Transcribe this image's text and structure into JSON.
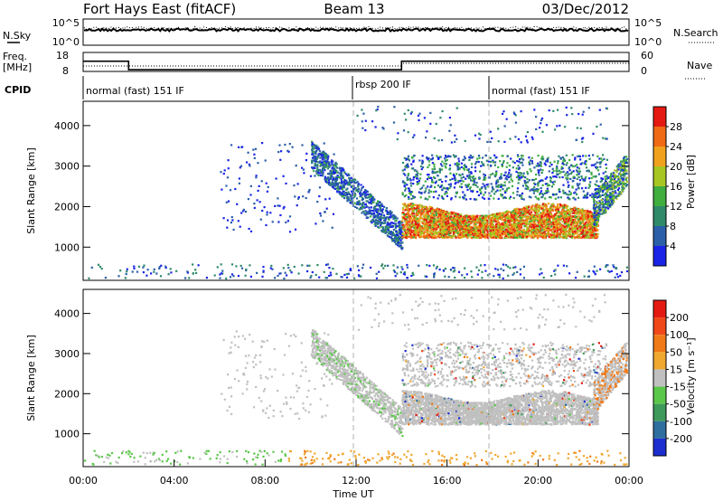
{
  "header": {
    "station": "Fort Hays East (fitACF)",
    "beam": "Beam 13",
    "date": "03/Dec/2012"
  },
  "summary_panels": {
    "nsky_label": "N.Sky",
    "nsky_ticks": [
      "10^5",
      "10^0"
    ],
    "nsearch_label": "N.Search",
    "nsearch_ticks": [
      "10^5",
      "10^0"
    ],
    "freq_label": "Freq.",
    "freq_unit": "[MHz]",
    "freq_ticks": [
      "18",
      "8"
    ],
    "nave_label": "Nave",
    "nave_ticks": [
      "60",
      "0"
    ],
    "cpid_label": "CPID",
    "cpid_segments": [
      {
        "label": "normal (fast) 151 IF",
        "start_hour": 0,
        "end_hour": 12
      },
      {
        "label": "rbsp 200 IF",
        "start_hour": 12,
        "end_hour": 18
      },
      {
        "label": "normal (fast) 151 IF",
        "start_hour": 18,
        "end_hour": 24
      }
    ],
    "freq_steps": [
      {
        "start_hour": 0,
        "end_hour": 2,
        "value": 15.3
      },
      {
        "start_hour": 2,
        "end_hour": 14,
        "value": 10.8
      },
      {
        "start_hour": 14,
        "end_hour": 24,
        "value": 15.3
      }
    ]
  },
  "chart_data": [
    {
      "type": "heatmap",
      "name": "power",
      "ylabel": "Slant Range [km]",
      "xlabel": "",
      "ylim": [
        180,
        4600
      ],
      "xlim": [
        0,
        24
      ],
      "yticks": [
        "1000",
        "2000",
        "3000",
        "4000"
      ],
      "colorbar_label": "Power [dB]",
      "colorbar_ticks": [
        "4",
        "8",
        "12",
        "16",
        "20",
        "24",
        "28"
      ],
      "colorbar_colors": [
        "#1a24e6",
        "#2b5fa8",
        "#2f8a6a",
        "#3fae3f",
        "#a8c622",
        "#f0a21e",
        "#f06a16",
        "#e41a12"
      ]
    },
    {
      "type": "heatmap",
      "name": "velocity",
      "ylabel": "Slant Range [km]",
      "xlabel": "Time UT",
      "ylim": [
        180,
        4600
      ],
      "xlim": [
        0,
        24
      ],
      "yticks": [
        "1000",
        "2000",
        "3000",
        "4000"
      ],
      "xticks": [
        "00:00",
        "04:00",
        "08:00",
        "12:00",
        "16:00",
        "20:00",
        "00:00"
      ],
      "colorbar_label": "Velocity [m s⁻¹]",
      "colorbar_ticks": [
        "200",
        "100",
        "50",
        "15",
        "-15",
        "-50",
        "-100",
        "-200"
      ],
      "colorbar_colors": [
        "#1c2ed0",
        "#2f6fa0",
        "#3e9a5a",
        "#5bc74a",
        "#c0c0c0",
        "#f0a830",
        "#f07a18",
        "#f04818",
        "#e41a12"
      ]
    }
  ]
}
